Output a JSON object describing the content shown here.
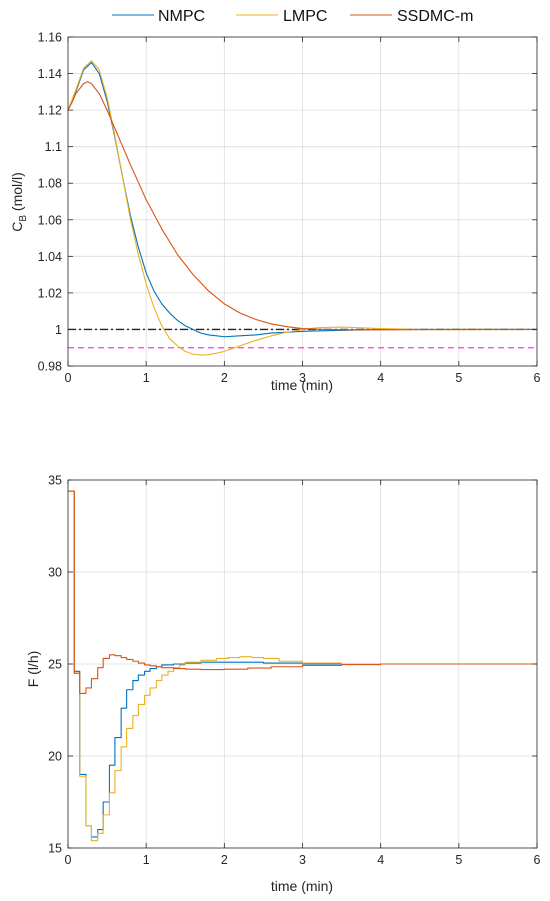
{
  "legend": {
    "entries": [
      {
        "name": "NMPC",
        "color": "#0072BD"
      },
      {
        "name": "LMPC",
        "color": "#EDB120"
      },
      {
        "name": "SSDMC-m",
        "color": "#D95319"
      }
    ],
    "placement": "top-center",
    "orientation": "horizontal"
  },
  "chart_data": [
    {
      "type": "line",
      "xlabel": "time (min)",
      "ylabel": "C",
      "ylabel_sub": "B",
      "ylabel_unit": " (mol/l)",
      "xlim": [
        0,
        6
      ],
      "ylim": [
        0.98,
        1.16
      ],
      "xticks": [
        0,
        1,
        2,
        3,
        4,
        5,
        6
      ],
      "yticks": [
        0.98,
        1,
        1.02,
        1.04,
        1.06,
        1.08,
        1.1,
        1.12,
        1.14,
        1.16
      ],
      "xtick_labels": [
        "0",
        "1",
        "2",
        "3",
        "4",
        "5",
        "6"
      ],
      "ytick_labels": [
        "0.98",
        "1",
        "1.02",
        "1.04",
        "1.06",
        "1.08",
        "1.1",
        "1.12",
        "1.14",
        "1.16"
      ],
      "grid": true,
      "series": [
        {
          "name": "NMPC",
          "color": "#0072BD",
          "x": [
            0,
            0.1,
            0.2,
            0.3,
            0.4,
            0.5,
            0.6,
            0.7,
            0.8,
            0.9,
            1.0,
            1.1,
            1.2,
            1.3,
            1.4,
            1.5,
            1.6,
            1.7,
            1.8,
            1.9,
            2.0,
            2.2,
            2.4,
            2.6,
            2.8,
            3.0,
            3.5,
            4.0,
            5.0,
            6.0
          ],
          "y": [
            1.12,
            1.13,
            1.142,
            1.146,
            1.14,
            1.125,
            1.105,
            1.083,
            1.062,
            1.045,
            1.031,
            1.021,
            1.014,
            1.009,
            1.005,
            1.002,
            1.0,
            0.998,
            0.997,
            0.9965,
            0.996,
            0.9965,
            0.997,
            0.998,
            0.9985,
            0.999,
            0.9995,
            1.0,
            1.0,
            1.0
          ]
        },
        {
          "name": "LMPC",
          "color": "#EDB120",
          "x": [
            0,
            0.1,
            0.2,
            0.3,
            0.4,
            0.5,
            0.6,
            0.7,
            0.8,
            0.9,
            1.0,
            1.1,
            1.2,
            1.3,
            1.4,
            1.5,
            1.6,
            1.7,
            1.8,
            1.9,
            2.0,
            2.2,
            2.4,
            2.6,
            2.8,
            3.0,
            3.2,
            3.5,
            3.7,
            4.0,
            4.5,
            5.0,
            6.0
          ],
          "y": [
            1.12,
            1.131,
            1.143,
            1.147,
            1.142,
            1.127,
            1.106,
            1.083,
            1.06,
            1.041,
            1.025,
            1.012,
            1.002,
            0.995,
            0.991,
            0.988,
            0.9865,
            0.986,
            0.9862,
            0.987,
            0.988,
            0.991,
            0.994,
            0.9965,
            0.9985,
            1.0,
            1.001,
            1.0013,
            1.001,
            1.0005,
            1.0,
            0.9998,
            1.0
          ]
        },
        {
          "name": "SSDMC-m",
          "color": "#D95319",
          "x": [
            0,
            0.05,
            0.1,
            0.2,
            0.25,
            0.3,
            0.4,
            0.5,
            0.6,
            0.8,
            1.0,
            1.2,
            1.4,
            1.6,
            1.8,
            2.0,
            2.2,
            2.4,
            2.6,
            2.8,
            3.0,
            3.3,
            3.6,
            4.0,
            5.0,
            6.0
          ],
          "y": [
            1.12,
            1.124,
            1.129,
            1.1345,
            1.1355,
            1.1345,
            1.129,
            1.12,
            1.11,
            1.09,
            1.071,
            1.055,
            1.041,
            1.03,
            1.021,
            1.014,
            1.009,
            1.0055,
            1.003,
            1.0015,
            1.0005,
            1.0,
            0.9998,
            0.9998,
            1.0,
            1.0
          ]
        }
      ],
      "reference_lines": [
        {
          "y": 1.0,
          "style": "dash-dot",
          "color": "#222222"
        },
        {
          "y": 0.99,
          "style": "dashed",
          "color": "#FF33FF"
        }
      ]
    },
    {
      "type": "line",
      "step": true,
      "xlabel": "time (min)",
      "ylabel": "F (l/h)",
      "xlim": [
        0,
        6
      ],
      "ylim": [
        15,
        35
      ],
      "xticks": [
        0,
        1,
        2,
        3,
        4,
        5,
        6
      ],
      "yticks": [
        15,
        20,
        25,
        30,
        35
      ],
      "xtick_labels": [
        "0",
        "1",
        "2",
        "3",
        "4",
        "5",
        "6"
      ],
      "ytick_labels": [
        "15",
        "20",
        "25",
        "30",
        "35"
      ],
      "grid": true,
      "series": [
        {
          "name": "NMPC",
          "color": "#0072BD",
          "x": [
            0,
            0.08,
            0.15,
            0.23,
            0.3,
            0.38,
            0.45,
            0.53,
            0.6,
            0.68,
            0.75,
            0.83,
            0.9,
            0.98,
            1.05,
            1.13,
            1.2,
            1.35,
            1.5,
            1.7,
            1.9,
            2.2,
            2.5,
            3.0,
            3.5,
            4.0,
            6.0
          ],
          "y": [
            34.4,
            24.6,
            19.0,
            16.2,
            15.6,
            16.0,
            17.5,
            19.5,
            21.0,
            22.6,
            23.6,
            24.1,
            24.4,
            24.6,
            24.75,
            24.85,
            24.95,
            25.0,
            25.05,
            25.1,
            25.1,
            25.1,
            25.05,
            25.0,
            25.0,
            25.0,
            25.0
          ]
        },
        {
          "name": "LMPC",
          "color": "#EDB120",
          "x": [
            0,
            0.08,
            0.15,
            0.23,
            0.3,
            0.38,
            0.45,
            0.53,
            0.6,
            0.68,
            0.75,
            0.83,
            0.9,
            0.98,
            1.05,
            1.13,
            1.2,
            1.28,
            1.35,
            1.43,
            1.5,
            1.7,
            1.9,
            2.05,
            2.2,
            2.35,
            2.5,
            2.7,
            3.0,
            3.5,
            4.0,
            6.0
          ],
          "y": [
            34.4,
            24.5,
            18.9,
            16.2,
            15.4,
            15.8,
            16.8,
            18.0,
            19.2,
            20.5,
            21.5,
            22.2,
            22.8,
            23.3,
            23.7,
            24.1,
            24.4,
            24.6,
            24.8,
            24.95,
            25.1,
            25.2,
            25.3,
            25.35,
            25.4,
            25.35,
            25.3,
            25.15,
            25.05,
            25.0,
            25.0,
            25.0
          ]
        },
        {
          "name": "SSDMC-m",
          "color": "#D95319",
          "x": [
            0,
            0.08,
            0.15,
            0.23,
            0.3,
            0.38,
            0.45,
            0.53,
            0.6,
            0.68,
            0.75,
            0.83,
            0.9,
            0.98,
            1.05,
            1.13,
            1.2,
            1.35,
            1.5,
            1.7,
            2.0,
            2.3,
            2.6,
            3.0,
            3.5,
            4.0,
            4.7,
            6.0
          ],
          "y": [
            34.4,
            24.5,
            23.4,
            23.7,
            24.2,
            24.8,
            25.3,
            25.5,
            25.45,
            25.35,
            25.25,
            25.15,
            25.05,
            24.95,
            24.9,
            24.85,
            24.8,
            24.75,
            24.72,
            24.7,
            24.72,
            24.78,
            24.85,
            24.92,
            24.97,
            25.0,
            25.0,
            25.0
          ]
        }
      ]
    }
  ]
}
